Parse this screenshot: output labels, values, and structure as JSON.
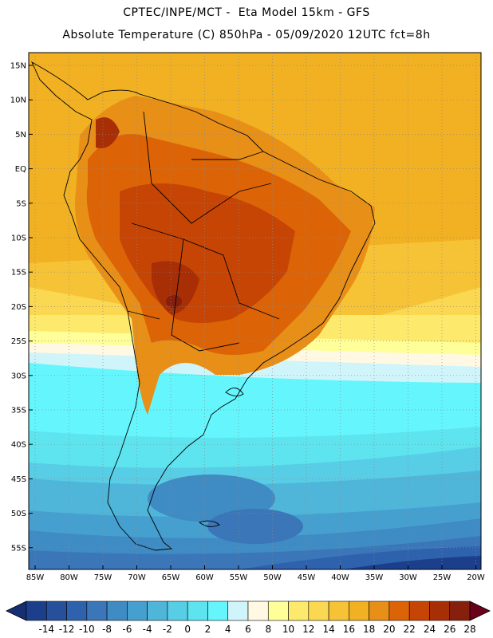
{
  "header": {
    "line1": "CPTEC/INPE/MCT -  Eta Model 15km - GFS",
    "line2": "Absolute Temperature (C) 850hPa - 05/09/2020 12UTC fct=8h"
  },
  "map": {
    "lat_labels": [
      "15N",
      "10N",
      "5N",
      "EQ",
      "5S",
      "10S",
      "15S",
      "20S",
      "25S",
      "30S",
      "35S",
      "40S",
      "45S",
      "50S",
      "55S"
    ],
    "lon_labels": [
      "85W",
      "80W",
      "75W",
      "70W",
      "65W",
      "60W",
      "55W",
      "50W",
      "45W",
      "40W",
      "35W",
      "30W",
      "25W",
      "20W"
    ]
  },
  "colorbar": {
    "labels": [
      "-14",
      "-12",
      "-10",
      "-8",
      "-6",
      "-4",
      "-2",
      "0",
      "2",
      "4",
      "6",
      "8",
      "10",
      "12",
      "14",
      "16",
      "18",
      "20",
      "22",
      "24",
      "26",
      "28"
    ],
    "colors": [
      "#1c3f8c",
      "#27509c",
      "#2e62ad",
      "#3a76b8",
      "#3f8bc4",
      "#46a0cf",
      "#4fb6da",
      "#58cde6",
      "#5ee4ee",
      "#64f6fc",
      "#cff5fb",
      "#fff8e2",
      "#ffff9a",
      "#fde96b",
      "#fbd851",
      "#f6c336",
      "#f1b122",
      "#e88f18",
      "#dc6407",
      "#c64505",
      "#a82e05",
      "#86200d"
    ],
    "low_arrow_color": "#162f72",
    "high_arrow_color": "#6a001a"
  }
}
